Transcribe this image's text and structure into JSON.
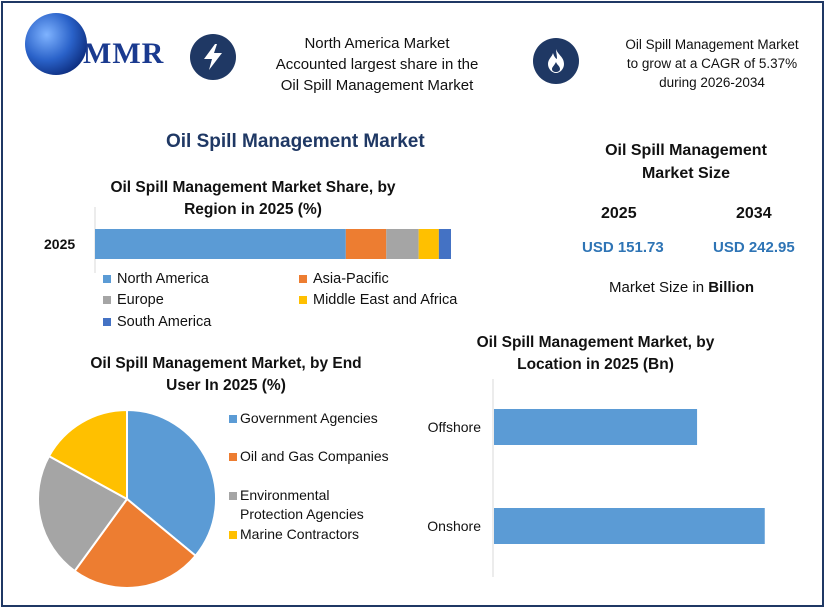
{
  "brand": {
    "logo_text": "MMR"
  },
  "header": {
    "box1_text": [
      "North America Market",
      "Accounted largest share in the",
      "Oil Spill Management Market"
    ],
    "box2_text": [
      "Oil Spill Management Market",
      "to grow at a CAGR of 5.37%",
      "during 2026-2034"
    ],
    "icon1": "lightning-icon",
    "icon2": "flame-icon"
  },
  "main_title": "Oil Spill Management Market",
  "market_size": {
    "title_lines": [
      "Oil Spill Management",
      "Market Size"
    ],
    "year1": "2025",
    "year2": "2034",
    "value1": "USD 151.73",
    "value2": "USD 242.95",
    "note_prefix": "Market Size in ",
    "note_bold": "Billion"
  },
  "colors": {
    "blue": "#5b9bd5",
    "orange": "#ed7d31",
    "gray": "#a5a5a5",
    "yellow": "#ffc000",
    "darkblue": "#4472c4",
    "navy": "#1f3864"
  },
  "chart_data": [
    {
      "type": "bar",
      "orientation": "horizontal-stacked",
      "title_lines": [
        "Oil Spill Management Market Share, by",
        "Region in 2025 (%)"
      ],
      "categories": [
        "2025"
      ],
      "series": [
        {
          "name": "North America",
          "values": [
            62
          ],
          "color": "#5b9bd5"
        },
        {
          "name": "Asia-Pacific",
          "values": [
            10
          ],
          "color": "#ed7d31"
        },
        {
          "name": "Europe",
          "values": [
            8
          ],
          "color": "#a5a5a5"
        },
        {
          "name": "Middle East and Africa",
          "values": [
            5
          ],
          "color": "#ffc000"
        },
        {
          "name": "South America",
          "values": [
            3
          ],
          "color": "#4472c4"
        }
      ]
    },
    {
      "type": "pie",
      "title_lines": [
        "Oil Spill Management Market, by End",
        "User In 2025 (%)"
      ],
      "slices": [
        {
          "name": "Government Agencies",
          "value": 36,
          "color": "#5b9bd5"
        },
        {
          "name": "Oil and Gas Companies",
          "value": 24,
          "color": "#ed7d31"
        },
        {
          "name": "Environmental Protection Agencies",
          "value": 23,
          "color": "#a5a5a5"
        },
        {
          "name": "Marine Contractors",
          "value": 17,
          "color": "#ffc000"
        }
      ],
      "legend_lines": [
        [
          "Government Agencies"
        ],
        [
          "Oil and Gas Companies"
        ],
        [
          "Environmental",
          "Protection Agencies"
        ],
        [
          "Marine Contractors"
        ]
      ]
    },
    {
      "type": "bar",
      "orientation": "horizontal",
      "title_lines": [
        "Oil Spill Management Market, by",
        "Location in 2025 (Bn)"
      ],
      "categories": [
        "Offshore",
        "Onshore"
      ],
      "values": [
        57,
        76
      ],
      "xlim": [
        0,
        80
      ],
      "color": "#5b9bd5"
    }
  ]
}
